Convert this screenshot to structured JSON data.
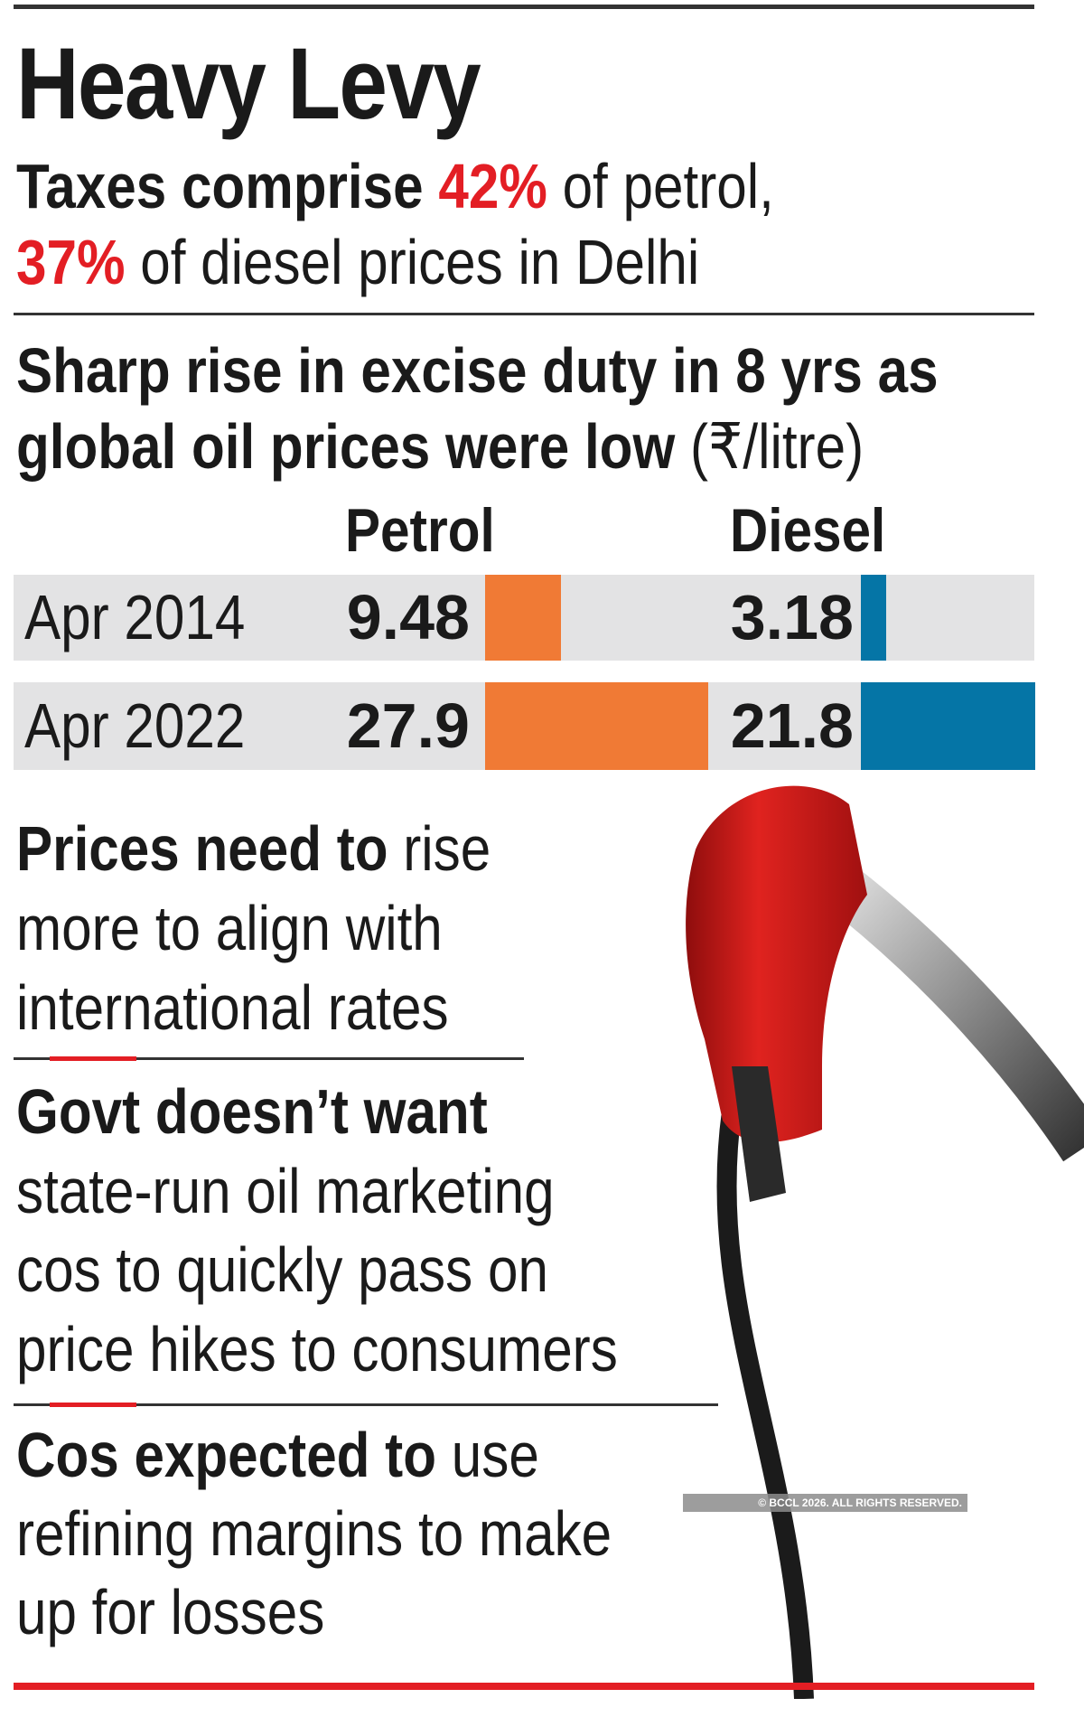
{
  "title": "Heavy Levy",
  "subtitle": {
    "line1_bold": "Taxes comprise",
    "line1_highlight": "42%",
    "line1_rest": "of petrol,",
    "line2_highlight": "37%",
    "line2_rest": "of diesel prices in Delhi"
  },
  "section_heading": {
    "line1": "Sharp rise in excise duty in 8 yrs as",
    "line2_bold": "global oil prices were low",
    "line2_unit": "(₹/litre)"
  },
  "chart_data": {
    "type": "bar",
    "orientation": "horizontal",
    "categories": [
      "Apr 2014",
      "Apr 2022"
    ],
    "series": [
      {
        "name": "Petrol",
        "values": [
          9.48,
          27.9
        ],
        "color": "#f07a35"
      },
      {
        "name": "Diesel",
        "values": [
          3.18,
          21.8
        ],
        "color": "#0575a6"
      }
    ],
    "value_labels": {
      "Petrol": [
        "9.48",
        "27.9"
      ],
      "Diesel": [
        "3.18",
        "21.8"
      ]
    },
    "unit": "₹/litre",
    "row_background": "#e3e3e4"
  },
  "points": [
    {
      "bold": "Prices need to",
      "lines": [
        "rise",
        "more to align with",
        "international rates"
      ]
    },
    {
      "bold": "Govt doesn’t want",
      "lines": [
        "state-run oil marketing",
        "cos to quickly pass on",
        "price hikes to consumers"
      ]
    },
    {
      "bold": "Cos expected to",
      "lines": [
        "use",
        "refining margins to make",
        "up for losses"
      ]
    }
  ],
  "watermark": "© BCCL 2026. ALL RIGHTS RESERVED.",
  "colors": {
    "accent_red": "#e31e24",
    "petrol": "#f07a35",
    "diesel": "#0575a6"
  },
  "illustration": "fuel-pump-nozzle"
}
